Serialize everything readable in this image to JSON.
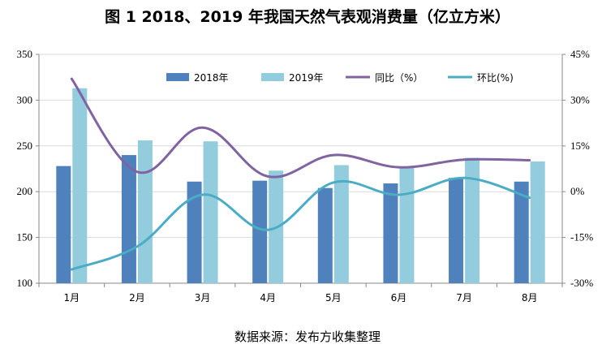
{
  "title": "图 1   2018、2019 年我国天然气表观消费量（亿立方米）",
  "source": "数据来源：发布方收集整理",
  "colors": {
    "bar2018": "#4f81bd",
    "bar2019": "#93cddd",
    "yoy": "#8064a2",
    "mom": "#4bacc6"
  },
  "chart_data": {
    "type": "bar",
    "categories": [
      "1月",
      "2月",
      "3月",
      "4月",
      "5月",
      "6月",
      "7月",
      "8月"
    ],
    "series": [
      {
        "name": "2018年",
        "type": "bar",
        "axis": "left",
        "values": [
          228,
          240,
          211,
          212,
          204,
          209,
          215,
          211
        ]
      },
      {
        "name": "2019年",
        "type": "bar",
        "axis": "left",
        "values": [
          313,
          256,
          255,
          223,
          229,
          226,
          237,
          233
        ]
      },
      {
        "name": "同比（%）",
        "type": "line",
        "axis": "right",
        "values": [
          37,
          6.5,
          21,
          5,
          12,
          8,
          10.5,
          10.3
        ]
      },
      {
        "name": "环比(%)",
        "type": "line",
        "axis": "right",
        "values": [
          -25.5,
          -18,
          -1,
          -12.5,
          3,
          -1,
          4.5,
          -2
        ]
      }
    ],
    "ylim_left": [
      100,
      350
    ],
    "yticks_left": [
      "100",
      "150",
      "200",
      "250",
      "300",
      "350"
    ],
    "ylim_right": [
      -30,
      45
    ],
    "yticks_right": [
      "-30%",
      "-15%",
      "0%",
      "15%",
      "30%",
      "45%"
    ],
    "grid": "horizontal",
    "legend": "top"
  }
}
